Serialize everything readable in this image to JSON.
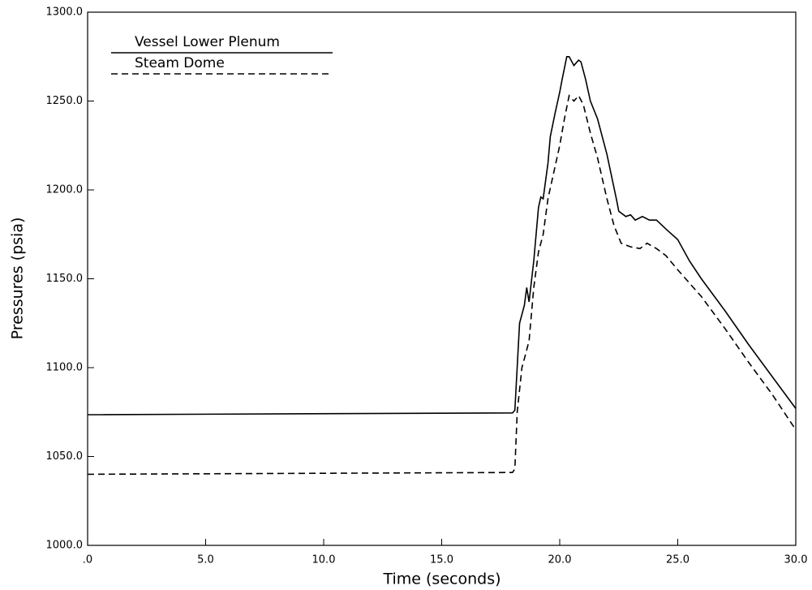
{
  "chart_data": {
    "type": "line",
    "xlabel": "Time  (seconds)",
    "ylabel": "Pressures  (psia)",
    "xlim": [
      0,
      30
    ],
    "xticks": [
      {
        "value": 0,
        "label": ".0"
      },
      {
        "value": 5,
        "label": "5.0"
      },
      {
        "value": 10,
        "label": "10.0"
      },
      {
        "value": 15,
        "label": "15.0"
      },
      {
        "value": 20,
        "label": "20.0"
      },
      {
        "value": 25,
        "label": "25.0"
      },
      {
        "value": 30,
        "label": "30.0"
      }
    ],
    "ylim": [
      1000,
      1300
    ],
    "yticks": [
      {
        "value": 1000,
        "label": "1000.0"
      },
      {
        "value": 1050,
        "label": "1050.0"
      },
      {
        "value": 1100,
        "label": "1100.0"
      },
      {
        "value": 1150,
        "label": "1150.0"
      },
      {
        "value": 1200,
        "label": "1200.0"
      },
      {
        "value": 1250,
        "label": "1250.0"
      },
      {
        "value": 1300,
        "label": "1300.0"
      }
    ],
    "legend": "upper left",
    "series": [
      {
        "name": "Vessel Lower Plenum",
        "color": "#000000",
        "line_style": "solid",
        "x": [
          0,
          18,
          18.1,
          18.3,
          18.5,
          18.6,
          18.7,
          18.9,
          19.1,
          19.2,
          19.3,
          19.5,
          19.6,
          19.8,
          20.0,
          20.1,
          20.3,
          20.4,
          20.6,
          20.8,
          20.9,
          21.1,
          21.3,
          21.6,
          22.0,
          22.4,
          22.5,
          22.8,
          23.0,
          23.2,
          23.5,
          23.8,
          24.1,
          24.5,
          25.0,
          25.5,
          26,
          27,
          28,
          29,
          30
        ],
        "values": [
          1073.5,
          1074.5,
          1076,
          1125,
          1135,
          1145,
          1137,
          1160,
          1190,
          1196,
          1195,
          1215,
          1230,
          1243,
          1255,
          1262,
          1275,
          1275,
          1270,
          1273,
          1272,
          1262,
          1250,
          1240,
          1220,
          1195,
          1188,
          1185,
          1186,
          1183,
          1185,
          1183,
          1183,
          1178,
          1172,
          1160,
          1150,
          1132,
          1113,
          1095,
          1077
        ]
      },
      {
        "name": "Steam Dome",
        "color": "#000000",
        "line_style": "dashed",
        "x": [
          0,
          18,
          18.1,
          18.2,
          18.4,
          18.5,
          18.7,
          18.9,
          19.1,
          19.3,
          19.5,
          19.8,
          20.0,
          20.2,
          20.4,
          20.6,
          20.8,
          21.0,
          21.3,
          21.6,
          22.0,
          22.3,
          22.6,
          23.0,
          23.4,
          23.7,
          24.1,
          24.5,
          25,
          26,
          27,
          28,
          29,
          30
        ],
        "values": [
          1040,
          1041,
          1043,
          1075,
          1100,
          1105,
          1115,
          1145,
          1165,
          1175,
          1195,
          1213,
          1225,
          1240,
          1253,
          1250,
          1253,
          1248,
          1232,
          1218,
          1195,
          1180,
          1170,
          1168,
          1167,
          1170,
          1167,
          1163,
          1155,
          1140,
          1122,
          1103,
          1085,
          1065
        ]
      }
    ]
  }
}
